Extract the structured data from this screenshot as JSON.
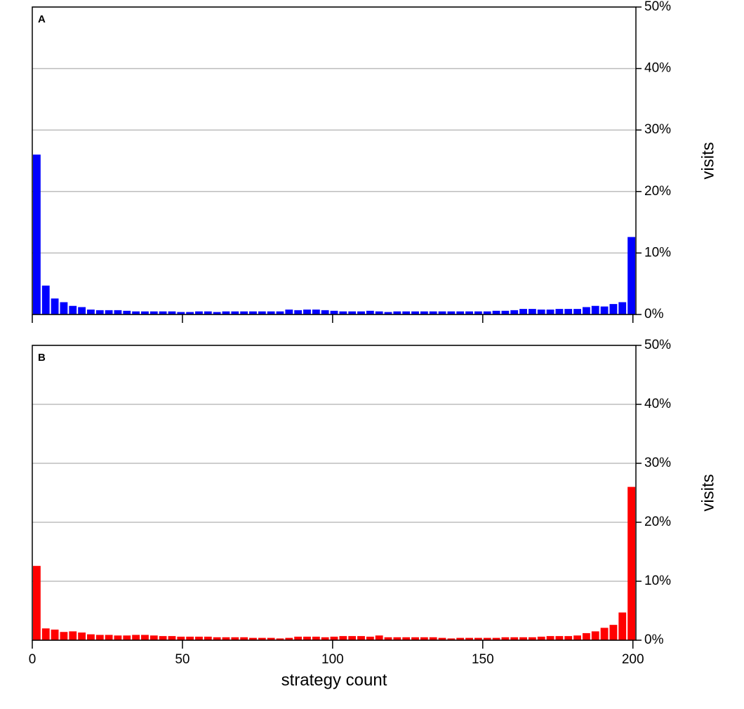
{
  "chart_data": [
    {
      "type": "histogram",
      "title": "A",
      "color": "#0000ff",
      "ylabel": "visits",
      "grid": true,
      "xtick_labels": false,
      "xlim": [
        0,
        201
      ],
      "xticks": [
        0,
        50,
        100,
        150,
        200
      ],
      "ylim": [
        0,
        50
      ],
      "yticks": [
        {
          "value": 0,
          "label": "0%"
        },
        {
          "value": 10,
          "label": "10%"
        },
        {
          "value": 20,
          "label": "20%"
        },
        {
          "value": 30,
          "label": "30%"
        },
        {
          "value": 40,
          "label": "40%"
        },
        {
          "value": 50,
          "label": "50%"
        }
      ],
      "bins": [
        0,
        3,
        6,
        9,
        12,
        15,
        18,
        21,
        24,
        27,
        30,
        33,
        36,
        39,
        42,
        45,
        48,
        51,
        54,
        57,
        60,
        63,
        66,
        69,
        72,
        75,
        78,
        81,
        84,
        87,
        90,
        93,
        96,
        99,
        102,
        105,
        108,
        111,
        114,
        117,
        120,
        123,
        126,
        129,
        132,
        135,
        138,
        141,
        144,
        147,
        150,
        153,
        156,
        159,
        162,
        165,
        168,
        171,
        174,
        177,
        180,
        183,
        186,
        189,
        192,
        195,
        198,
        201
      ],
      "values": [
        26,
        4.7,
        2.6,
        2,
        1.4,
        1.2,
        0.8,
        0.7,
        0.7,
        0.7,
        0.6,
        0.5,
        0.5,
        0.5,
        0.5,
        0.5,
        0.4,
        0.4,
        0.5,
        0.5,
        0.4,
        0.5,
        0.5,
        0.5,
        0.5,
        0.5,
        0.5,
        0.5,
        0.8,
        0.7,
        0.8,
        0.8,
        0.7,
        0.6,
        0.5,
        0.5,
        0.5,
        0.6,
        0.5,
        0.4,
        0.5,
        0.5,
        0.5,
        0.5,
        0.5,
        0.5,
        0.5,
        0.5,
        0.5,
        0.5,
        0.5,
        0.6,
        0.6,
        0.7,
        0.9,
        0.9,
        0.8,
        0.8,
        0.9,
        0.9,
        0.9,
        1.2,
        1.4,
        1.3,
        1.7,
        2,
        12.6
      ]
    },
    {
      "type": "histogram",
      "title": "B",
      "color": "#ff0000",
      "ylabel": "visits",
      "xlabel": "strategy count",
      "grid": true,
      "xtick_labels": true,
      "xlim": [
        0,
        201
      ],
      "xticks": [
        0,
        50,
        100,
        150,
        200
      ],
      "ylim": [
        0,
        50
      ],
      "yticks": [
        {
          "value": 0,
          "label": "0%"
        },
        {
          "value": 10,
          "label": "10%"
        },
        {
          "value": 20,
          "label": "20%"
        },
        {
          "value": 30,
          "label": "30%"
        },
        {
          "value": 40,
          "label": "40%"
        },
        {
          "value": 50,
          "label": "50%"
        }
      ],
      "bins": [
        0,
        3,
        6,
        9,
        12,
        15,
        18,
        21,
        24,
        27,
        30,
        33,
        36,
        39,
        42,
        45,
        48,
        51,
        54,
        57,
        60,
        63,
        66,
        69,
        72,
        75,
        78,
        81,
        84,
        87,
        90,
        93,
        96,
        99,
        102,
        105,
        108,
        111,
        114,
        117,
        120,
        123,
        126,
        129,
        132,
        135,
        138,
        141,
        144,
        147,
        150,
        153,
        156,
        159,
        162,
        165,
        168,
        171,
        174,
        177,
        180,
        183,
        186,
        189,
        192,
        195,
        198,
        201
      ],
      "values": [
        12.6,
        2,
        1.8,
        1.4,
        1.5,
        1.3,
        1,
        0.9,
        0.9,
        0.8,
        0.8,
        0.9,
        0.9,
        0.8,
        0.7,
        0.7,
        0.6,
        0.6,
        0.6,
        0.6,
        0.5,
        0.5,
        0.5,
        0.5,
        0.4,
        0.4,
        0.4,
        0.3,
        0.4,
        0.6,
        0.6,
        0.6,
        0.5,
        0.6,
        0.7,
        0.7,
        0.7,
        0.6,
        0.8,
        0.5,
        0.5,
        0.5,
        0.5,
        0.5,
        0.5,
        0.4,
        0.3,
        0.4,
        0.4,
        0.4,
        0.4,
        0.4,
        0.5,
        0.5,
        0.5,
        0.5,
        0.6,
        0.7,
        0.7,
        0.7,
        0.8,
        1.2,
        1.5,
        2.1,
        2.6,
        4.7,
        26
      ]
    }
  ]
}
